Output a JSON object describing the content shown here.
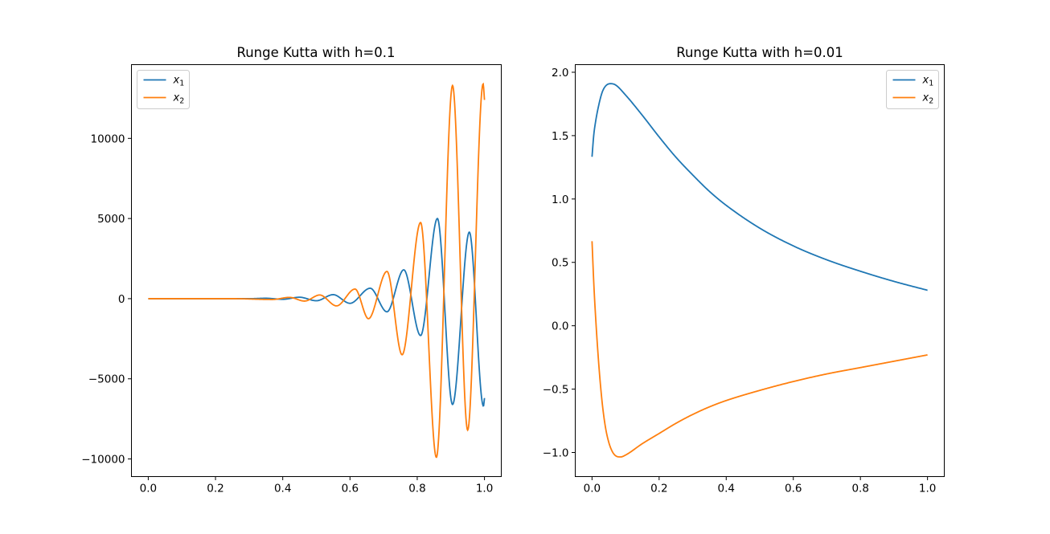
{
  "colors": {
    "x1": "#1f77b4",
    "x2": "#ff7f0e",
    "axes": "#000000",
    "background": "#ffffff"
  },
  "chart_data": [
    {
      "type": "line",
      "title": "Runge Kutta with h=0.1",
      "xlabel": "",
      "ylabel": "",
      "xlim": [
        -0.05,
        1.05
      ],
      "ylim": [
        -11100,
        14600
      ],
      "xticks": [
        0.0,
        0.2,
        0.4,
        0.6,
        0.8,
        1.0
      ],
      "xtick_labels": [
        "0.0",
        "0.2",
        "0.4",
        "0.6",
        "0.8",
        "1.0"
      ],
      "yticks": [
        -10000,
        -5000,
        0,
        5000,
        10000
      ],
      "ytick_labels": [
        "−10000",
        "−5000",
        "0",
        "5000",
        "10000"
      ],
      "grid": false,
      "legend": {
        "placement": "upper-left",
        "entries": [
          {
            "base": "x",
            "sub": "1"
          },
          {
            "base": "x",
            "sub": "2"
          }
        ]
      },
      "series": [
        {
          "name": "x1",
          "color": "#1f77b4",
          "points": [
            [
              0.0,
              0
            ],
            [
              0.3,
              0
            ],
            [
              0.35,
              25
            ],
            [
              0.4,
              -40
            ],
            [
              0.45,
              90
            ],
            [
              0.5,
              -130
            ],
            [
              0.55,
              250
            ],
            [
              0.6,
              -290
            ],
            [
              0.66,
              650
            ],
            [
              0.71,
              -820
            ],
            [
              0.76,
              1800
            ],
            [
              0.81,
              -2300
            ],
            [
              0.86,
              5000
            ],
            [
              0.905,
              -6600
            ],
            [
              0.955,
              4150
            ],
            [
              0.997,
              -6700
            ],
            [
              1.0,
              -6200
            ]
          ]
        },
        {
          "name": "x2",
          "color": "#ff7f0e",
          "points": [
            [
              0.0,
              0
            ],
            [
              0.25,
              0
            ],
            [
              0.37,
              -50
            ],
            [
              0.42,
              80
            ],
            [
              0.465,
              -150
            ],
            [
              0.51,
              230
            ],
            [
              0.56,
              -450
            ],
            [
              0.615,
              600
            ],
            [
              0.655,
              -1250
            ],
            [
              0.71,
              1700
            ],
            [
              0.755,
              -3500
            ],
            [
              0.81,
              4750
            ],
            [
              0.857,
              -9900
            ],
            [
              0.905,
              13300
            ],
            [
              0.95,
              -8200
            ],
            [
              0.996,
              13400
            ],
            [
              1.0,
              12400
            ]
          ]
        }
      ]
    },
    {
      "type": "line",
      "title": "Runge Kutta with h=0.01",
      "xlabel": "",
      "ylabel": "",
      "xlim": [
        -0.05,
        1.05
      ],
      "ylim": [
        -1.19,
        2.06
      ],
      "xticks": [
        0.0,
        0.2,
        0.4,
        0.6,
        0.8,
        1.0
      ],
      "xtick_labels": [
        "0.0",
        "0.2",
        "0.4",
        "0.6",
        "0.8",
        "1.0"
      ],
      "yticks": [
        -1.0,
        -0.5,
        0.0,
        0.5,
        1.0,
        1.5,
        2.0
      ],
      "ytick_labels": [
        "−1.0",
        "−0.5",
        "0.0",
        "0.5",
        "1.0",
        "1.5",
        "2.0"
      ],
      "grid": false,
      "legend": {
        "placement": "upper-right",
        "entries": [
          {
            "base": "x",
            "sub": "1"
          },
          {
            "base": "x",
            "sub": "2"
          }
        ]
      },
      "series": [
        {
          "name": "x1",
          "color": "#1f77b4",
          "points": [
            [
              0.0,
              1.333
            ],
            [
              0.005,
              1.5
            ],
            [
              0.01,
              1.6
            ],
            [
              0.02,
              1.74
            ],
            [
              0.03,
              1.84
            ],
            [
              0.04,
              1.89
            ],
            [
              0.055,
              1.91
            ],
            [
              0.07,
              1.9
            ],
            [
              0.1,
              1.82
            ],
            [
              0.15,
              1.66
            ],
            [
              0.2,
              1.49
            ],
            [
              0.25,
              1.33
            ],
            [
              0.3,
              1.19
            ],
            [
              0.35,
              1.06
            ],
            [
              0.4,
              0.95
            ],
            [
              0.5,
              0.77
            ],
            [
              0.6,
              0.63
            ],
            [
              0.7,
              0.52
            ],
            [
              0.8,
              0.43
            ],
            [
              0.9,
              0.35
            ],
            [
              1.0,
              0.28
            ]
          ]
        },
        {
          "name": "x2",
          "color": "#ff7f0e",
          "points": [
            [
              0.0,
              0.667
            ],
            [
              0.005,
              0.35
            ],
            [
              0.01,
              0.1
            ],
            [
              0.02,
              -0.3
            ],
            [
              0.03,
              -0.6
            ],
            [
              0.04,
              -0.8
            ],
            [
              0.05,
              -0.92
            ],
            [
              0.06,
              -0.99
            ],
            [
              0.07,
              -1.025
            ],
            [
              0.085,
              -1.035
            ],
            [
              0.1,
              -1.02
            ],
            [
              0.15,
              -0.93
            ],
            [
              0.2,
              -0.85
            ],
            [
              0.25,
              -0.77
            ],
            [
              0.3,
              -0.7
            ],
            [
              0.35,
              -0.64
            ],
            [
              0.4,
              -0.59
            ],
            [
              0.5,
              -0.51
            ],
            [
              0.6,
              -0.44
            ],
            [
              0.7,
              -0.38
            ],
            [
              0.8,
              -0.33
            ],
            [
              0.9,
              -0.28
            ],
            [
              1.0,
              -0.23
            ]
          ]
        }
      ]
    }
  ]
}
